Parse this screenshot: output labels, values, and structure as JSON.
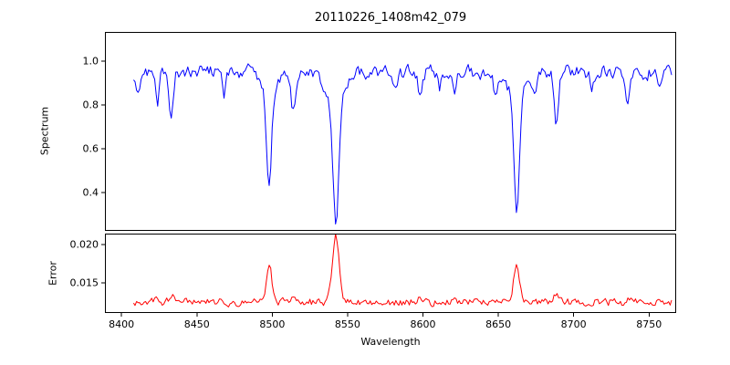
{
  "title": "20110226_1408m42_079",
  "chart_data": {
    "type": "line",
    "title": "20110226_1408m42_079",
    "xlabel": "Wavelength",
    "xlim": [
      8389,
      8768
    ],
    "xticks": [
      8400,
      8450,
      8500,
      8550,
      8600,
      8650,
      8700,
      8750
    ],
    "grid": false,
    "legend": "none",
    "panels": [
      {
        "name": "spectrum",
        "ylabel": "Spectrum",
        "color": "#0000ff",
        "ylim": [
          0.225,
          1.133
        ],
        "yticks": [
          0.4,
          0.6,
          0.8,
          1.0
        ],
        "ytick_decimals": 1,
        "x_start": 8408,
        "x_end": 8765,
        "x_step": 1,
        "baseline": 0.95,
        "noise_amp": 0.028,
        "noise_smooth": 0.45,
        "seed": 20110226,
        "features": [
          {
            "center": 8498.0,
            "amp": -0.45,
            "sigma": 1.6
          },
          {
            "center": 8498.0,
            "amp": -0.09,
            "sigma": 4.5
          },
          {
            "center": 8542.1,
            "amp": -0.55,
            "sigma": 2.0
          },
          {
            "center": 8542.1,
            "amp": -0.14,
            "sigma": 6.0
          },
          {
            "center": 8662.1,
            "amp": -0.5,
            "sigma": 1.8
          },
          {
            "center": 8662.1,
            "amp": -0.12,
            "sigma": 5.0
          },
          {
            "center": 8514.1,
            "amp": -0.18,
            "sigma": 1.4
          },
          {
            "center": 8688.6,
            "amp": -0.24,
            "sigma": 1.5
          },
          {
            "center": 8433.0,
            "amp": -0.2,
            "sigma": 1.5
          },
          {
            "center": 8424.0,
            "amp": -0.12,
            "sigma": 1.2
          },
          {
            "center": 8468.0,
            "amp": -0.11,
            "sigma": 1.3
          },
          {
            "center": 8582.0,
            "amp": -0.09,
            "sigma": 1.2
          },
          {
            "center": 8598.0,
            "amp": -0.11,
            "sigma": 1.3
          },
          {
            "center": 8611.0,
            "amp": -0.08,
            "sigma": 1.1
          },
          {
            "center": 8621.0,
            "amp": -0.07,
            "sigma": 1.1
          },
          {
            "center": 8648.0,
            "amp": -0.1,
            "sigma": 1.2
          },
          {
            "center": 8674.0,
            "amp": -0.11,
            "sigma": 1.2
          },
          {
            "center": 8712.0,
            "amp": -0.08,
            "sigma": 1.2
          },
          {
            "center": 8736.0,
            "amp": -0.12,
            "sigma": 1.4
          },
          {
            "center": 8757.0,
            "amp": -0.08,
            "sigma": 1.2
          },
          {
            "center": 8410.0,
            "amp": -0.08,
            "sigma": 2.5
          }
        ]
      },
      {
        "name": "error",
        "ylabel": "Error",
        "color": "#ff0000",
        "ylim": [
          0.0111,
          0.0214
        ],
        "yticks": [
          0.015,
          0.02
        ],
        "ytick_decimals": 3,
        "x_start": 8408,
        "x_end": 8765,
        "x_step": 1,
        "baseline": 0.0125,
        "noise_amp": 0.00045,
        "noise_smooth": 0.4,
        "seed": 1408,
        "features": [
          {
            "center": 8498.0,
            "amp": 0.0045,
            "sigma": 1.8
          },
          {
            "center": 8542.1,
            "amp": 0.0088,
            "sigma": 2.2
          },
          {
            "center": 8662.1,
            "amp": 0.005,
            "sigma": 1.9
          },
          {
            "center": 8434.0,
            "amp": 0.0013,
            "sigma": 1.5
          },
          {
            "center": 8688.6,
            "amp": 0.0012,
            "sigma": 1.5
          },
          {
            "center": 8514.1,
            "amp": 0.0007,
            "sigma": 1.4
          },
          {
            "center": 8424.0,
            "amp": 0.0006,
            "sigma": 1.2
          },
          {
            "center": 8598.0,
            "amp": 0.0004,
            "sigma": 1.3
          },
          {
            "center": 8736.0,
            "amp": 0.0005,
            "sigma": 1.4
          }
        ]
      }
    ]
  }
}
